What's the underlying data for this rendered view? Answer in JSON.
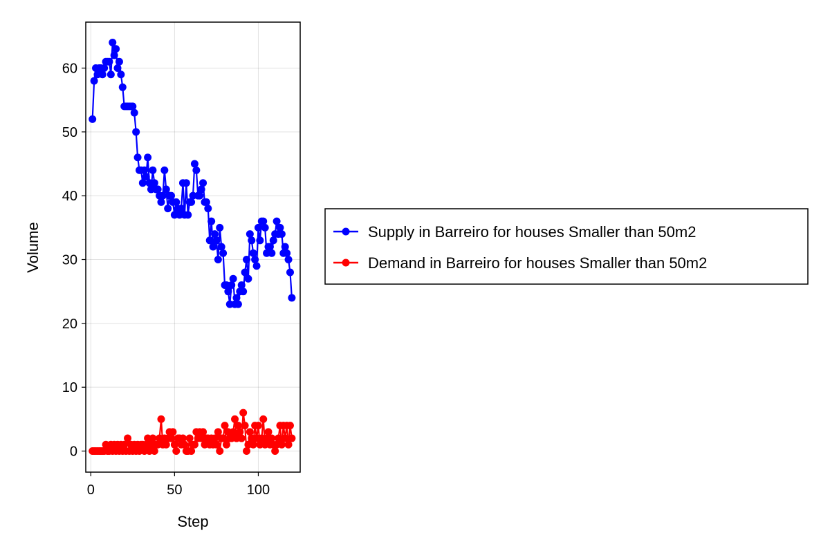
{
  "chart_data": {
    "type": "line",
    "title": "",
    "xlabel": "Step",
    "ylabel": "Volume",
    "xlim": [
      -3,
      125
    ],
    "ylim": [
      -3.3,
      67.2
    ],
    "xticks": [
      0,
      50,
      100
    ],
    "yticks": [
      0,
      10,
      20,
      30,
      40,
      50,
      60
    ],
    "grid": true,
    "legend_position": "right",
    "series": [
      {
        "name": "Supply in Barreiro for houses Smaller than 50m2",
        "color": "#0000ff",
        "marker": "circle",
        "x": [
          1,
          2,
          3,
          4,
          5,
          6,
          7,
          8,
          9,
          10,
          11,
          12,
          13,
          14,
          15,
          16,
          17,
          18,
          19,
          20,
          21,
          22,
          23,
          24,
          25,
          26,
          27,
          28,
          29,
          30,
          31,
          32,
          33,
          34,
          35,
          36,
          37,
          38,
          39,
          40,
          41,
          42,
          43,
          44,
          45,
          46,
          47,
          48,
          49,
          50,
          51,
          52,
          53,
          54,
          55,
          56,
          57,
          58,
          59,
          60,
          61,
          62,
          63,
          64,
          65,
          66,
          67,
          68,
          69,
          70,
          71,
          72,
          73,
          74,
          75,
          76,
          77,
          78,
          79,
          80,
          81,
          82,
          83,
          84,
          85,
          86,
          87,
          88,
          89,
          90,
          91,
          92,
          93,
          94,
          95,
          96,
          97,
          98,
          99,
          100,
          101,
          102,
          103,
          104,
          105,
          106,
          107,
          108,
          109,
          110,
          111,
          112,
          113,
          114,
          115,
          116,
          117,
          118,
          119,
          120
        ],
        "y": [
          52,
          58,
          60,
          59,
          60,
          60,
          59,
          60,
          61,
          61,
          61,
          59,
          64,
          62,
          63,
          60,
          61,
          59,
          57,
          54,
          54,
          54,
          54,
          54,
          54,
          53,
          50,
          46,
          44,
          44,
          42,
          44,
          43,
          46,
          42,
          41,
          44,
          42,
          41,
          41,
          40,
          39,
          40,
          44,
          41,
          38,
          40,
          40,
          39,
          37,
          39,
          38,
          37,
          38,
          42,
          37,
          42,
          37,
          39,
          39,
          40,
          45,
          44,
          40,
          40,
          41,
          42,
          39,
          39,
          38,
          33,
          36,
          32,
          34,
          33,
          30,
          35,
          32,
          31,
          26,
          26,
          25,
          23,
          26,
          27,
          23,
          24,
          23,
          25,
          26,
          25,
          28,
          30,
          27,
          34,
          33,
          31,
          30,
          29,
          35,
          33,
          36,
          36,
          35,
          31,
          32,
          32,
          31,
          33,
          34,
          36,
          34,
          35,
          34,
          31,
          32,
          31,
          30,
          28,
          24
        ]
      },
      {
        "name": "Demand in Barreiro for houses Smaller than 50m2",
        "color": "#ff0000",
        "marker": "circle",
        "x": [
          1,
          2,
          3,
          4,
          5,
          6,
          7,
          8,
          9,
          10,
          11,
          12,
          13,
          14,
          15,
          16,
          17,
          18,
          19,
          20,
          21,
          22,
          23,
          24,
          25,
          26,
          27,
          28,
          29,
          30,
          31,
          32,
          33,
          34,
          35,
          36,
          37,
          38,
          39,
          40,
          41,
          42,
          43,
          44,
          45,
          46,
          47,
          48,
          49,
          50,
          51,
          52,
          53,
          54,
          55,
          56,
          57,
          58,
          59,
          60,
          61,
          62,
          63,
          64,
          65,
          66,
          67,
          68,
          69,
          70,
          71,
          72,
          73,
          74,
          75,
          76,
          77,
          78,
          79,
          80,
          81,
          82,
          83,
          84,
          85,
          86,
          87,
          88,
          89,
          90,
          91,
          92,
          93,
          94,
          95,
          96,
          97,
          98,
          99,
          100,
          101,
          102,
          103,
          104,
          105,
          106,
          107,
          108,
          109,
          110,
          111,
          112,
          113,
          114,
          115,
          116,
          117,
          118,
          119,
          120
        ],
        "y": [
          0,
          0,
          0,
          0,
          0,
          0,
          0,
          0,
          1,
          0,
          0,
          1,
          0,
          1,
          0,
          1,
          0,
          1,
          0,
          1,
          0,
          2,
          0,
          1,
          0,
          1,
          0,
          1,
          0,
          1,
          1,
          0,
          1,
          2,
          0,
          1,
          2,
          0,
          1,
          1,
          2,
          5,
          1,
          2,
          1,
          2,
          3,
          2,
          3,
          1,
          0,
          2,
          2,
          1,
          2,
          1,
          0,
          0,
          2,
          0,
          1,
          1,
          3,
          2,
          3,
          2,
          3,
          1,
          2,
          2,
          1,
          2,
          1,
          2,
          1,
          3,
          0,
          2,
          2,
          4,
          1,
          3,
          2,
          2,
          3,
          5,
          2,
          4,
          3,
          2,
          6,
          4,
          0,
          1,
          3,
          2,
          1,
          4,
          2,
          4,
          1,
          2,
          5,
          1,
          2,
          3,
          1,
          2,
          1,
          0,
          1,
          2,
          4,
          1,
          4,
          2,
          4,
          1,
          4,
          2
        ]
      }
    ]
  }
}
